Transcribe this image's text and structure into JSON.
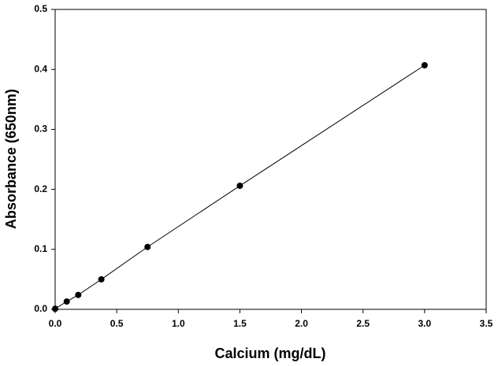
{
  "chart_data": {
    "type": "scatter",
    "xlabel": "Calcium (mg/dL)",
    "ylabel": "Absorbance (650nm)",
    "x": [
      0,
      0.094,
      0.1875,
      0.375,
      0.75,
      1.5,
      3.0
    ],
    "series": [
      {
        "values": [
          0.001,
          0.013,
          0.024,
          0.05,
          0.104,
          0.206,
          0.407
        ],
        "color": "#000000"
      }
    ],
    "xlim": [
      0,
      3.5
    ],
    "ylim": [
      0,
      0.5
    ],
    "xticks": [
      {
        "value": 0,
        "label": "0.0"
      },
      0.5,
      {
        "value": 1,
        "label": "1.0"
      },
      1.5,
      {
        "value": 2,
        "label": "2.0"
      },
      2.5,
      {
        "value": 3,
        "label": "3.0"
      },
      3.5
    ],
    "yticks": [
      {
        "value": 0,
        "label": "0.0"
      },
      0.1,
      0.2,
      0.3,
      0.4,
      0.5
    ],
    "fit_line": true
  }
}
